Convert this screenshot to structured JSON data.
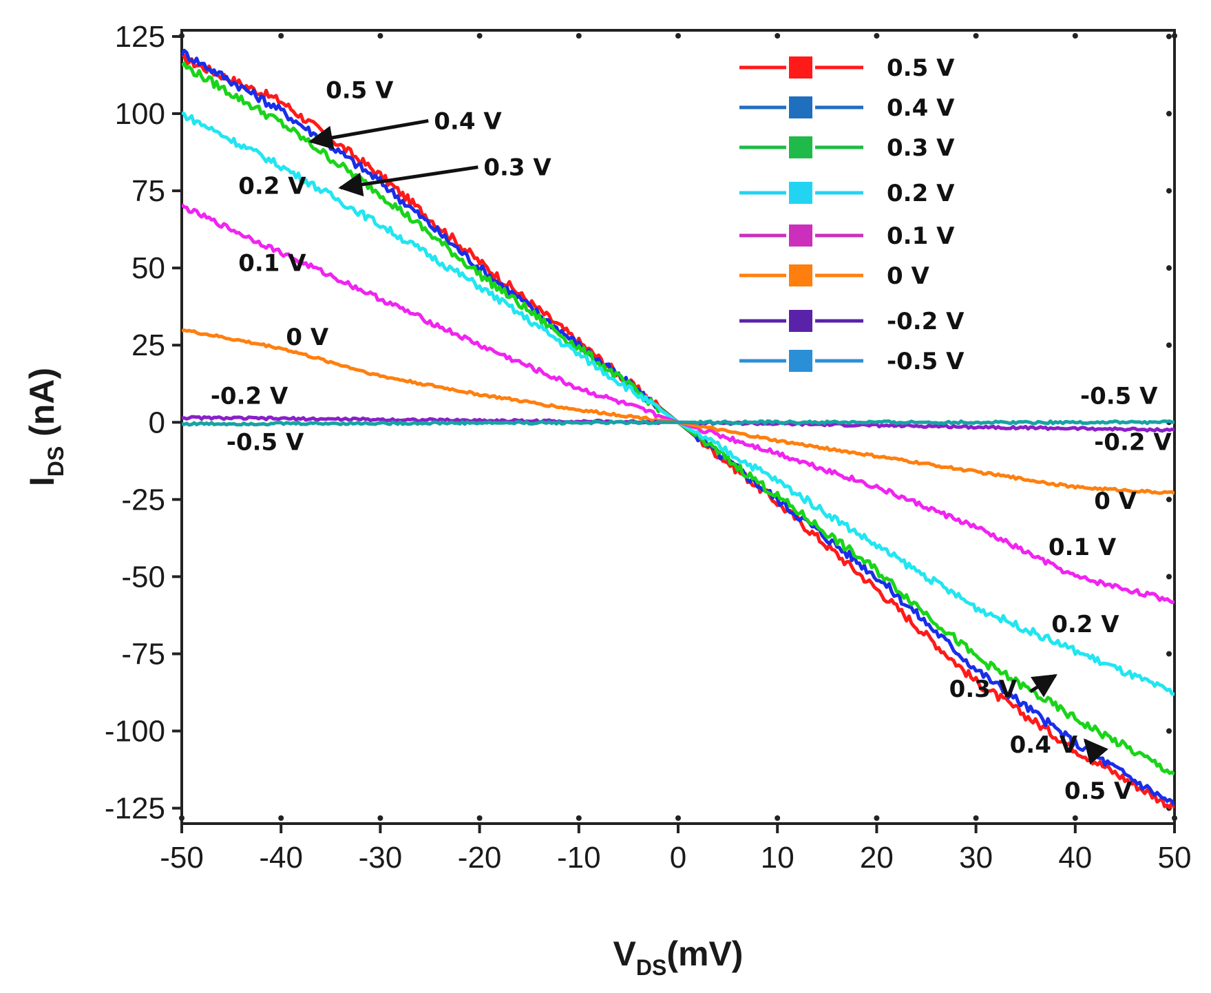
{
  "chart_data": {
    "type": "line",
    "title": "",
    "xlabel": "V_DS(mV)",
    "xlabel_main": "V",
    "xlabel_sub": "DS",
    "xlabel_unit": "(mV)",
    "ylabel": "I_DS (nA)",
    "ylabel_main": "I",
    "ylabel_sub": "DS",
    "ylabel_unit": " (nA)",
    "xlim": [
      -50,
      50
    ],
    "ylim": [
      -130,
      127
    ],
    "x_ticks": [
      -50,
      -40,
      -30,
      -20,
      -10,
      0,
      10,
      20,
      30,
      40,
      50
    ],
    "y_ticks": [
      125,
      100,
      75,
      50,
      25,
      0,
      -25,
      -50,
      -75,
      -100,
      -125
    ],
    "grid": false,
    "legend_position": "top-right",
    "series": [
      {
        "name": "0.5 V",
        "color": "#ff1a1a",
        "x": [
          -50,
          -40,
          -30,
          -20,
          -10,
          0,
          10,
          20,
          30,
          40,
          50
        ],
        "y": [
          118,
          104,
          80,
          52,
          26,
          0,
          -26,
          -54,
          -84,
          -106,
          -125
        ]
      },
      {
        "name": "0.4 V",
        "color": "#1a2ee8",
        "x": [
          -50,
          -40,
          -30,
          -20,
          -10,
          0,
          10,
          20,
          30,
          40,
          50
        ],
        "y": [
          120,
          101,
          78,
          50,
          25,
          0,
          -25,
          -50,
          -80,
          -104,
          -124
        ]
      },
      {
        "name": "0.3 V",
        "color": "#19d419",
        "x": [
          -50,
          -40,
          -30,
          -20,
          -10,
          0,
          10,
          20,
          30,
          40,
          50
        ],
        "y": [
          116,
          97,
          74,
          48,
          24,
          0,
          -24,
          -48,
          -76,
          -96,
          -114
        ]
      },
      {
        "name": "0.2 V",
        "color": "#22e5f0",
        "x": [
          -50,
          -40,
          -30,
          -20,
          -10,
          0,
          10,
          20,
          30,
          40,
          50
        ],
        "y": [
          100,
          83,
          64,
          44,
          22,
          0,
          -19,
          -40,
          -60,
          -74,
          -88
        ]
      },
      {
        "name": "0.1 V",
        "color": "#f024f0",
        "x": [
          -50,
          -40,
          -30,
          -20,
          -10,
          0,
          10,
          20,
          30,
          40,
          50
        ],
        "y": [
          70,
          55,
          40,
          25,
          11,
          0,
          -10,
          -21,
          -34,
          -50,
          -58
        ]
      },
      {
        "name": "0 V",
        "color": "#ff7f0e",
        "x": [
          -50,
          -40,
          -30,
          -20,
          -10,
          0,
          10,
          20,
          30,
          40,
          50
        ],
        "y": [
          30,
          24,
          15,
          9,
          4,
          0,
          -6,
          -11,
          -16,
          -21,
          -23
        ]
      },
      {
        "name": "-0.2 V",
        "color": "#8a20c8",
        "x": [
          -50,
          -40,
          -30,
          -20,
          -10,
          0,
          10,
          20,
          30,
          40,
          50
        ],
        "y": [
          1.5,
          1.2,
          0.9,
          0.6,
          0.3,
          0,
          -0.5,
          -1,
          -1.5,
          -2,
          -2.5
        ]
      },
      {
        "name": "-0.5 V",
        "color": "#17a3a3",
        "x": [
          -50,
          -40,
          -30,
          -20,
          -10,
          0,
          10,
          20,
          30,
          40,
          50
        ],
        "y": [
          -0.5,
          -0.4,
          -0.3,
          -0.2,
          -0.1,
          0,
          0,
          0,
          0,
          0,
          0
        ]
      }
    ],
    "legend": [
      {
        "label": "0.5 V",
        "color": "#ff1a1a"
      },
      {
        "label": "0.4 V",
        "color": "#1f6fbf"
      },
      {
        "label": "0.3 V",
        "color": "#1fba4a"
      },
      {
        "label": "0.2 V",
        "color": "#22d4f2"
      },
      {
        "label": "0.1 V",
        "color": "#cc2fbb"
      },
      {
        "label": "0 V",
        "color": "#ff7f0e"
      },
      {
        "label": "-0.2 V",
        "color": "#5a22a8"
      },
      {
        "label": "-0.5 V",
        "color": "#2a8fd6"
      }
    ],
    "annotations": [
      {
        "text": "0.5 V",
        "x": -35.5,
        "y": 105
      },
      {
        "text": "0.4 V",
        "x": -24.6,
        "y": 95,
        "arrow_to": [
          -37,
          91
        ]
      },
      {
        "text": "0.3 V",
        "x": -19.6,
        "y": 80,
        "arrow_to": [
          -34,
          76
        ]
      },
      {
        "text": "0.2 V",
        "x": -44.3,
        "y": 74
      },
      {
        "text": "0.1 V",
        "x": -44.3,
        "y": 49
      },
      {
        "text": "0 V",
        "x": -39.5,
        "y": 25
      },
      {
        "text": "-0.2 V",
        "x": -47.1,
        "y": 6
      },
      {
        "text": "-0.5 V",
        "x": -45.5,
        "y": -9
      },
      {
        "text": "-0.5 V",
        "x": 40.5,
        "y": 6
      },
      {
        "text": "-0.2 V",
        "x": 41.9,
        "y": -9
      },
      {
        "text": "0 V",
        "x": 41.9,
        "y": -28
      },
      {
        "text": "0.1 V",
        "x": 37.3,
        "y": -43
      },
      {
        "text": "0.2 V",
        "x": 37.6,
        "y": -68
      },
      {
        "text": "0.3 V",
        "x": 27.3,
        "y": -89,
        "arrow_to": [
          38,
          -82
        ]
      },
      {
        "text": "0.4 V",
        "x": 33.4,
        "y": -107,
        "arrow_to": [
          41,
          -103
        ]
      },
      {
        "text": "0.5 V",
        "x": 38.9,
        "y": -122
      }
    ]
  }
}
